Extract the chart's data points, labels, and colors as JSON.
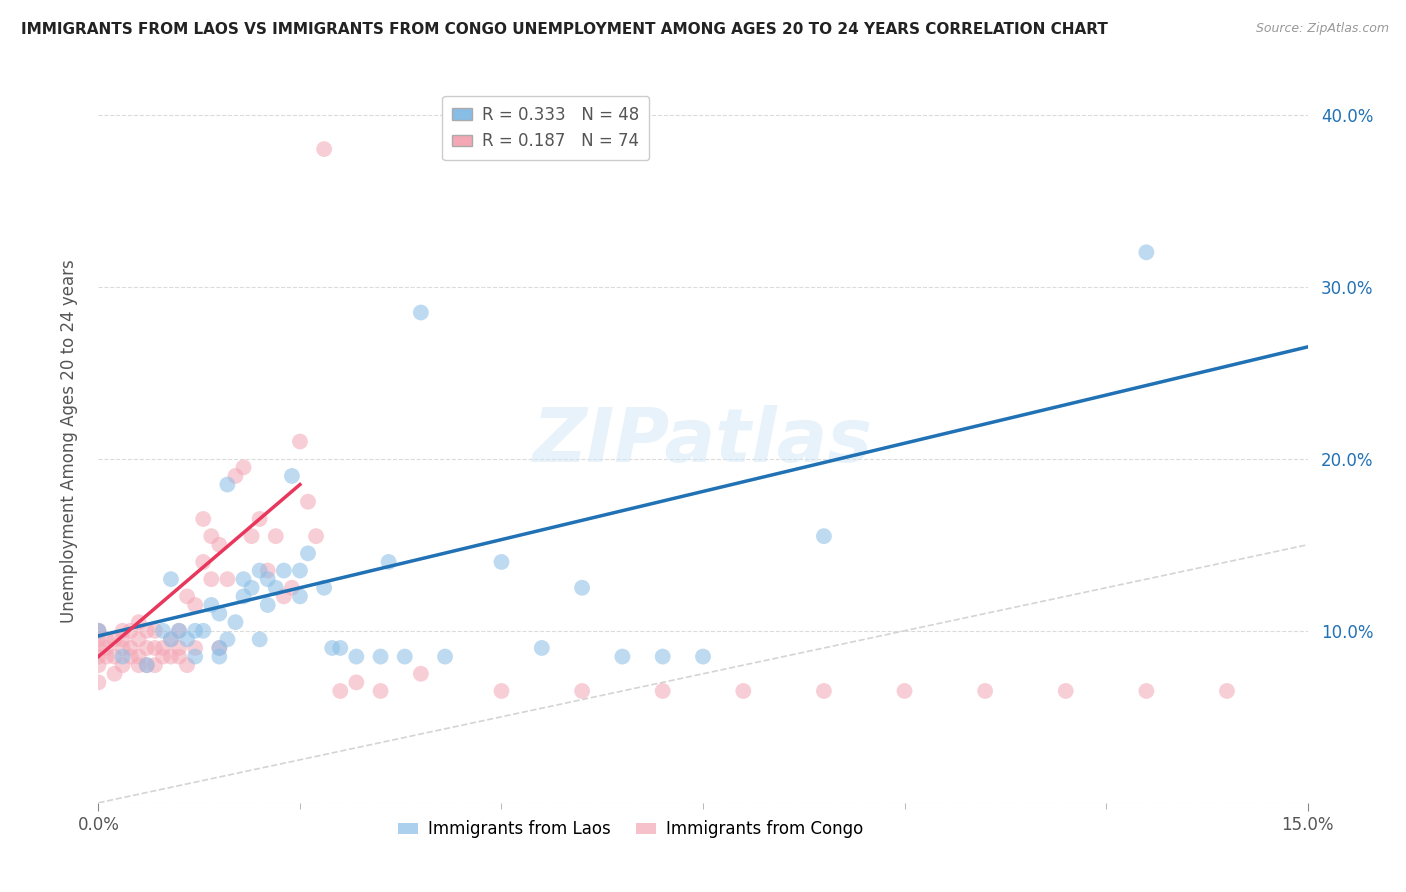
{
  "title": "IMMIGRANTS FROM LAOS VS IMMIGRANTS FROM CONGO UNEMPLOYMENT AMONG AGES 20 TO 24 YEARS CORRELATION CHART",
  "source": "Source: ZipAtlas.com",
  "ylabel": "Unemployment Among Ages 20 to 24 years",
  "xlim": [
    0.0,
    0.15
  ],
  "ylim": [
    0.0,
    0.42
  ],
  "r_laos": 0.333,
  "n_laos": 48,
  "r_congo": 0.187,
  "n_congo": 74,
  "laos_color": "#88bde6",
  "congo_color": "#f4a7b5",
  "laos_line_color": "#2171b5",
  "congo_line_color": "#e8365d",
  "diagonal_color": "#d0d0d0",
  "watermark": "ZIPatlas",
  "background_color": "#ffffff",
  "laos_x": [
    0.0,
    0.003,
    0.006,
    0.008,
    0.009,
    0.009,
    0.01,
    0.011,
    0.012,
    0.012,
    0.013,
    0.014,
    0.015,
    0.015,
    0.015,
    0.016,
    0.016,
    0.017,
    0.018,
    0.018,
    0.019,
    0.02,
    0.02,
    0.021,
    0.021,
    0.022,
    0.023,
    0.024,
    0.025,
    0.025,
    0.026,
    0.028,
    0.029,
    0.03,
    0.032,
    0.035,
    0.036,
    0.038,
    0.04,
    0.043,
    0.05,
    0.055,
    0.06,
    0.065,
    0.07,
    0.075,
    0.09,
    0.13
  ],
  "laos_y": [
    0.1,
    0.085,
    0.08,
    0.1,
    0.095,
    0.13,
    0.1,
    0.095,
    0.1,
    0.085,
    0.1,
    0.115,
    0.09,
    0.085,
    0.11,
    0.095,
    0.185,
    0.105,
    0.12,
    0.13,
    0.125,
    0.135,
    0.095,
    0.115,
    0.13,
    0.125,
    0.135,
    0.19,
    0.12,
    0.135,
    0.145,
    0.125,
    0.09,
    0.09,
    0.085,
    0.085,
    0.14,
    0.085,
    0.285,
    0.085,
    0.14,
    0.09,
    0.125,
    0.085,
    0.085,
    0.085,
    0.155,
    0.32
  ],
  "congo_x": [
    0.0,
    0.0,
    0.0,
    0.0,
    0.0,
    0.0,
    0.0,
    0.001,
    0.001,
    0.001,
    0.002,
    0.002,
    0.002,
    0.003,
    0.003,
    0.003,
    0.003,
    0.004,
    0.004,
    0.004,
    0.005,
    0.005,
    0.005,
    0.005,
    0.006,
    0.006,
    0.006,
    0.007,
    0.007,
    0.007,
    0.008,
    0.008,
    0.009,
    0.009,
    0.01,
    0.01,
    0.01,
    0.011,
    0.011,
    0.012,
    0.012,
    0.013,
    0.013,
    0.014,
    0.014,
    0.015,
    0.015,
    0.016,
    0.017,
    0.018,
    0.019,
    0.02,
    0.021,
    0.022,
    0.023,
    0.024,
    0.025,
    0.026,
    0.027,
    0.028,
    0.03,
    0.032,
    0.035,
    0.04,
    0.05,
    0.06,
    0.07,
    0.08,
    0.09,
    0.1,
    0.11,
    0.12,
    0.13,
    0.14
  ],
  "congo_y": [
    0.08,
    0.09,
    0.1,
    0.085,
    0.095,
    0.1,
    0.07,
    0.085,
    0.09,
    0.095,
    0.075,
    0.085,
    0.095,
    0.09,
    0.095,
    0.08,
    0.1,
    0.085,
    0.09,
    0.1,
    0.08,
    0.085,
    0.095,
    0.105,
    0.08,
    0.09,
    0.1,
    0.08,
    0.09,
    0.1,
    0.085,
    0.09,
    0.085,
    0.095,
    0.085,
    0.09,
    0.1,
    0.08,
    0.12,
    0.09,
    0.115,
    0.14,
    0.165,
    0.13,
    0.155,
    0.09,
    0.15,
    0.13,
    0.19,
    0.195,
    0.155,
    0.165,
    0.135,
    0.155,
    0.12,
    0.125,
    0.21,
    0.175,
    0.155,
    0.38,
    0.065,
    0.07,
    0.065,
    0.075,
    0.065,
    0.065,
    0.065,
    0.065,
    0.065,
    0.065,
    0.065,
    0.065,
    0.065,
    0.065
  ],
  "laos_line_x0": 0.0,
  "laos_line_y0": 0.097,
  "laos_line_x1": 0.15,
  "laos_line_y1": 0.265,
  "congo_line_x0": 0.0,
  "congo_line_y0": 0.085,
  "congo_line_x1": 0.025,
  "congo_line_y1": 0.185
}
